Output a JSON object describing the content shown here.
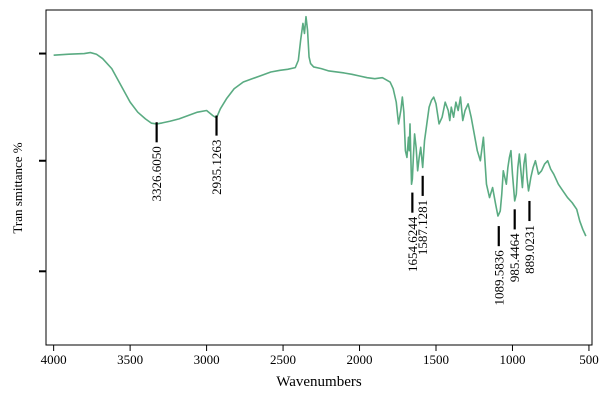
{
  "chart_data": {
    "type": "line",
    "xlabel": "Wavenumbers",
    "ylabel": "Tran smittance %",
    "xlim": [
      4050,
      480
    ],
    "ylim": [
      0,
      100
    ],
    "x_ticks": [
      4000,
      3500,
      3000,
      2500,
      2000,
      1500,
      1000,
      500
    ],
    "x_tick_labels": [
      "4000",
      "3500",
      "3000",
      "2500",
      "2000",
      "1500",
      "1000",
      "500"
    ],
    "y_ticks": [
      22,
      55,
      87
    ],
    "grid": false,
    "line_color": "#5aab82",
    "series": [
      {
        "x": [
          4000,
          3900,
          3800,
          3760,
          3720,
          3680,
          3620,
          3560,
          3500,
          3450,
          3400,
          3360,
          3326.6,
          3290,
          3240,
          3180,
          3120,
          3060,
          3000,
          2960,
          2935.1,
          2910,
          2870,
          2820,
          2760,
          2700,
          2640,
          2580,
          2520,
          2470,
          2420,
          2400,
          2385,
          2370,
          2360,
          2350,
          2340,
          2330,
          2320,
          2300,
          2250,
          2200,
          2150,
          2100,
          2050,
          2000,
          1950,
          1900,
          1850,
          1800,
          1780,
          1760,
          1745,
          1730,
          1720,
          1710,
          1700,
          1690,
          1680,
          1675,
          1670,
          1665,
          1660,
          1654.6,
          1648,
          1640,
          1630,
          1620,
          1610,
          1600,
          1587.1,
          1575,
          1560,
          1545,
          1530,
          1515,
          1500,
          1480,
          1460,
          1440,
          1420,
          1410,
          1400,
          1385,
          1370,
          1355,
          1340,
          1325,
          1310,
          1290,
          1270,
          1250,
          1230,
          1210,
          1190,
          1170,
          1150,
          1130,
          1110,
          1095,
          1089.6,
          1080,
          1070,
          1060,
          1050,
          1040,
          1030,
          1020,
          1010,
          1000,
          985.4,
          975,
          965,
          955,
          945,
          935,
          925,
          915,
          905,
          895,
          889.0,
          880,
          865,
          850,
          830,
          810,
          790,
          770,
          750,
          730,
          700,
          670,
          640,
          610,
          580,
          560,
          540,
          530,
          520
        ],
        "y": [
          86.5,
          86.8,
          87.0,
          87.3,
          86.8,
          85.5,
          82.5,
          77.5,
          72.5,
          69.5,
          67.5,
          66.2,
          66.0,
          66.3,
          66.8,
          67.5,
          68.5,
          69.5,
          70.0,
          68.5,
          67.8,
          70.5,
          73.5,
          76.5,
          78.5,
          79.5,
          80.5,
          81.5,
          82.0,
          82.3,
          82.8,
          85.0,
          91.0,
          96.0,
          93.0,
          98.0,
          94.0,
          86.0,
          84.0,
          83.0,
          82.5,
          81.8,
          81.5,
          81.2,
          80.8,
          80.3,
          79.8,
          79.5,
          79.8,
          78.5,
          76.5,
          72.5,
          66.0,
          70.0,
          74.0,
          69.5,
          58.0,
          56.0,
          62.0,
          58.0,
          66.0,
          57.0,
          48.0,
          49.5,
          56.0,
          63.0,
          59.0,
          52.0,
          56.0,
          59.0,
          53.0,
          61.0,
          66.0,
          71.0,
          73.0,
          74.0,
          72.0,
          66.0,
          68.0,
          72.5,
          70.0,
          67.0,
          71.0,
          68.0,
          72.5,
          70.0,
          74.0,
          67.0,
          70.0,
          72.0,
          68.0,
          63.0,
          58.0,
          55.0,
          62.0,
          48.0,
          44.0,
          47.0,
          42.0,
          38.5,
          39.0,
          40.0,
          45.0,
          52.0,
          50.0,
          48.0,
          53.0,
          56.0,
          58.0,
          51.0,
          43.0,
          45.0,
          53.0,
          57.0,
          52.0,
          47.0,
          54.0,
          57.0,
          50.0,
          46.0,
          47.5,
          50.0,
          53.0,
          55.0,
          51.0,
          52.0,
          54.0,
          55.0,
          52.5,
          51.0,
          48.0,
          46.0,
          44.0,
          42.5,
          40.5,
          37.0,
          34.5,
          33.5,
          32.5
        ]
      }
    ],
    "annotations": [
      {
        "label": "3326.6050",
        "x": 3326.6,
        "tick_from": 66.5,
        "tick_to": 60.5
      },
      {
        "label": "2935.1263",
        "x": 2935.1,
        "tick_from": 68.5,
        "tick_to": 62.5
      },
      {
        "label": "1654.6244",
        "x": 1654.6,
        "tick_from": 45.5,
        "tick_to": 39.5
      },
      {
        "label": "1587.1281",
        "x": 1587.1,
        "tick_from": 50.5,
        "tick_to": 44.5
      },
      {
        "label": "1089.5836",
        "x": 1089.6,
        "tick_from": 35.5,
        "tick_to": 29.5
      },
      {
        "label": "985.4464",
        "x": 985.4,
        "tick_from": 40.5,
        "tick_to": 34.5
      },
      {
        "label": "889.0231",
        "x": 889.0,
        "tick_from": 43.0,
        "tick_to": 37.0
      }
    ]
  }
}
